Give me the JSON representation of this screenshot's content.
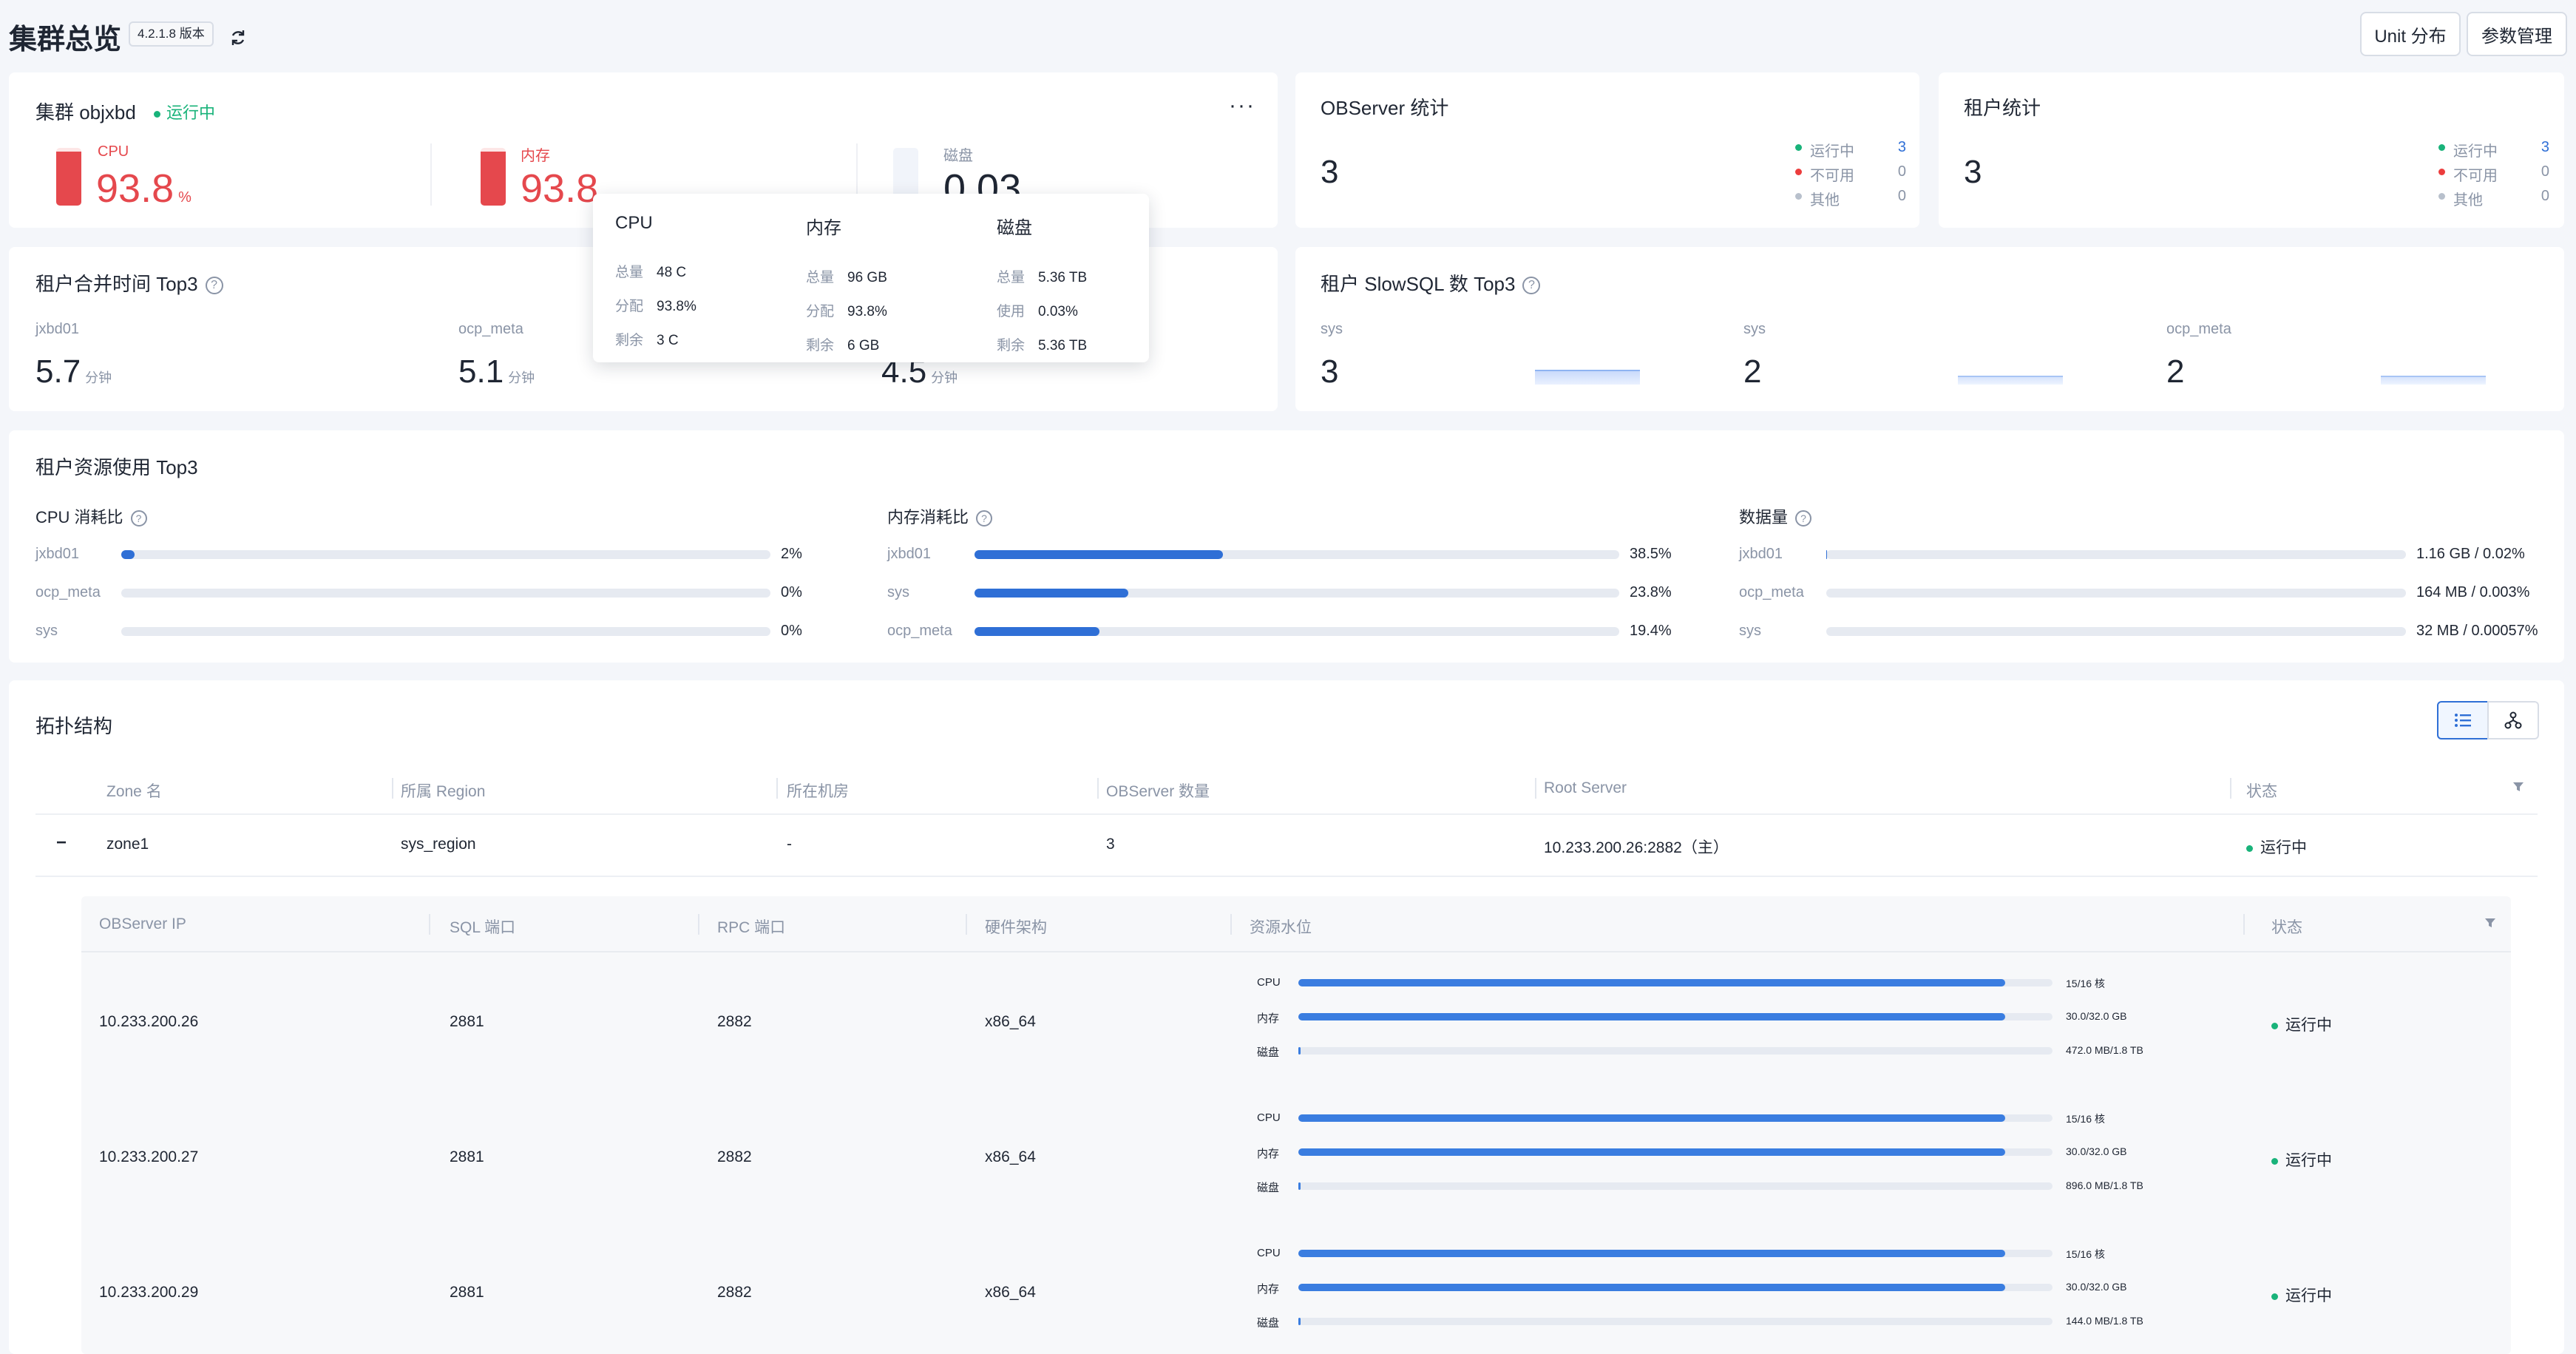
{
  "header": {
    "title": "集群总览",
    "version_badge": "4.2.1.8 版本",
    "unit_button": "Unit 分布",
    "param_button": "参数管理"
  },
  "cluster_card": {
    "title": "集群 objxbd",
    "status": "运行中",
    "cpu_label": "CPU",
    "cpu_value": "93.8",
    "cpu_unit": "%",
    "mem_label": "内存",
    "mem_value": "93.8",
    "disk_label": "磁盘",
    "disk_value": "0.03",
    "cpu_level": 93.8,
    "mem_level": 93.8,
    "disk_level": 0.03
  },
  "tooltip": {
    "cols": [
      {
        "title": "CPU",
        "rows": [
          [
            "总量",
            "48 C"
          ],
          [
            "分配",
            "93.8%"
          ],
          [
            "剩余",
            "3 C"
          ]
        ]
      },
      {
        "title": "内存",
        "rows": [
          [
            "总量",
            "96 GB"
          ],
          [
            "分配",
            "93.8%"
          ],
          [
            "剩余",
            "6 GB"
          ]
        ]
      },
      {
        "title": "磁盘",
        "rows": [
          [
            "总量",
            "5.36 TB"
          ],
          [
            "使用",
            "0.03%"
          ],
          [
            "剩余",
            "5.36 TB"
          ]
        ]
      }
    ]
  },
  "observer_stats": {
    "title": "OBServer 统计",
    "total": "3",
    "items": [
      {
        "label": "运行中",
        "value": "3"
      },
      {
        "label": "不可用",
        "value": "0"
      },
      {
        "label": "其他",
        "value": "0"
      }
    ]
  },
  "tenant_stats": {
    "title": "租户统计",
    "total": "3",
    "items": [
      {
        "label": "运行中",
        "value": "3"
      },
      {
        "label": "不可用",
        "value": "0"
      },
      {
        "label": "其他",
        "value": "0"
      }
    ]
  },
  "merge_top3": {
    "title": "租户合并时间 Top3",
    "unit": "分钟",
    "items": [
      {
        "name": "jxbd01",
        "value": "5.7"
      },
      {
        "name": "ocp_meta",
        "value": "5.1"
      },
      {
        "name": "",
        "value": "4.5"
      }
    ]
  },
  "slowsql_top3": {
    "title": "租户 SlowSQL 数 Top3",
    "items": [
      {
        "name": "sys",
        "value": "3"
      },
      {
        "name": "sys",
        "value": "2"
      },
      {
        "name": "ocp_meta",
        "value": "2"
      }
    ]
  },
  "resource_top3": {
    "title": "租户资源使用 Top3",
    "groups": [
      {
        "title": "CPU 消耗比",
        "items": [
          {
            "name": "jxbd01",
            "value": "2%",
            "level": 2
          },
          {
            "name": "ocp_meta",
            "value": "0%",
            "level": 0
          },
          {
            "name": "sys",
            "value": "0%",
            "level": 0
          }
        ]
      },
      {
        "title": "内存消耗比",
        "items": [
          {
            "name": "jxbd01",
            "value": "38.5%",
            "level": 38.5
          },
          {
            "name": "sys",
            "value": "23.8%",
            "level": 23.8
          },
          {
            "name": "ocp_meta",
            "value": "19.4%",
            "level": 19.4
          }
        ]
      },
      {
        "title": "数据量",
        "items": [
          {
            "name": "jxbd01",
            "value": "1.16 GB / 0.02%",
            "level": 0.02
          },
          {
            "name": "ocp_meta",
            "value": "164 MB / 0.003%",
            "level": 0.003
          },
          {
            "name": "sys",
            "value": "32 MB / 0.00057%",
            "level": 0.00057
          }
        ]
      }
    ]
  },
  "topology": {
    "title": "拓扑结构",
    "zone_headers": [
      "Zone 名",
      "所属 Region",
      "所在机房",
      "OBServer 数量",
      "Root Server",
      "状态"
    ],
    "zone": {
      "collapse": "−",
      "name": "zone1",
      "region": "sys_region",
      "idc": "-",
      "count": "3",
      "root": "10.233.200.26:2882（主）",
      "status": "运行中"
    },
    "server_headers": [
      "OBServer IP",
      "SQL 端口",
      "RPC 端口",
      "硬件架构",
      "资源水位",
      "状态"
    ],
    "servers": [
      {
        "ip": "10.233.200.26",
        "sql": "2881",
        "rpc": "2882",
        "arch": "x86_64",
        "status": "运行中",
        "res": [
          {
            "label": "CPU",
            "value": "15/16 核",
            "level": 93.75
          },
          {
            "label": "内存",
            "value": "30.0/32.0 GB",
            "level": 93.75
          },
          {
            "label": "磁盘",
            "value": "472.0 MB/1.8 TB",
            "level": 0.03
          }
        ]
      },
      {
        "ip": "10.233.200.27",
        "sql": "2881",
        "rpc": "2882",
        "arch": "x86_64",
        "status": "运行中",
        "res": [
          {
            "label": "CPU",
            "value": "15/16 核",
            "level": 93.75
          },
          {
            "label": "内存",
            "value": "30.0/32.0 GB",
            "level": 93.75
          },
          {
            "label": "磁盘",
            "value": "896.0 MB/1.8 TB",
            "level": 0.05
          }
        ]
      },
      {
        "ip": "10.233.200.29",
        "sql": "2881",
        "rpc": "2882",
        "arch": "x86_64",
        "status": "运行中",
        "res": [
          {
            "label": "CPU",
            "value": "15/16 核",
            "level": 93.75
          },
          {
            "label": "内存",
            "value": "30.0/32.0 GB",
            "level": 93.75
          },
          {
            "label": "磁盘",
            "value": "144.0 MB/1.8 TB",
            "level": 0.01
          }
        ]
      }
    ]
  }
}
